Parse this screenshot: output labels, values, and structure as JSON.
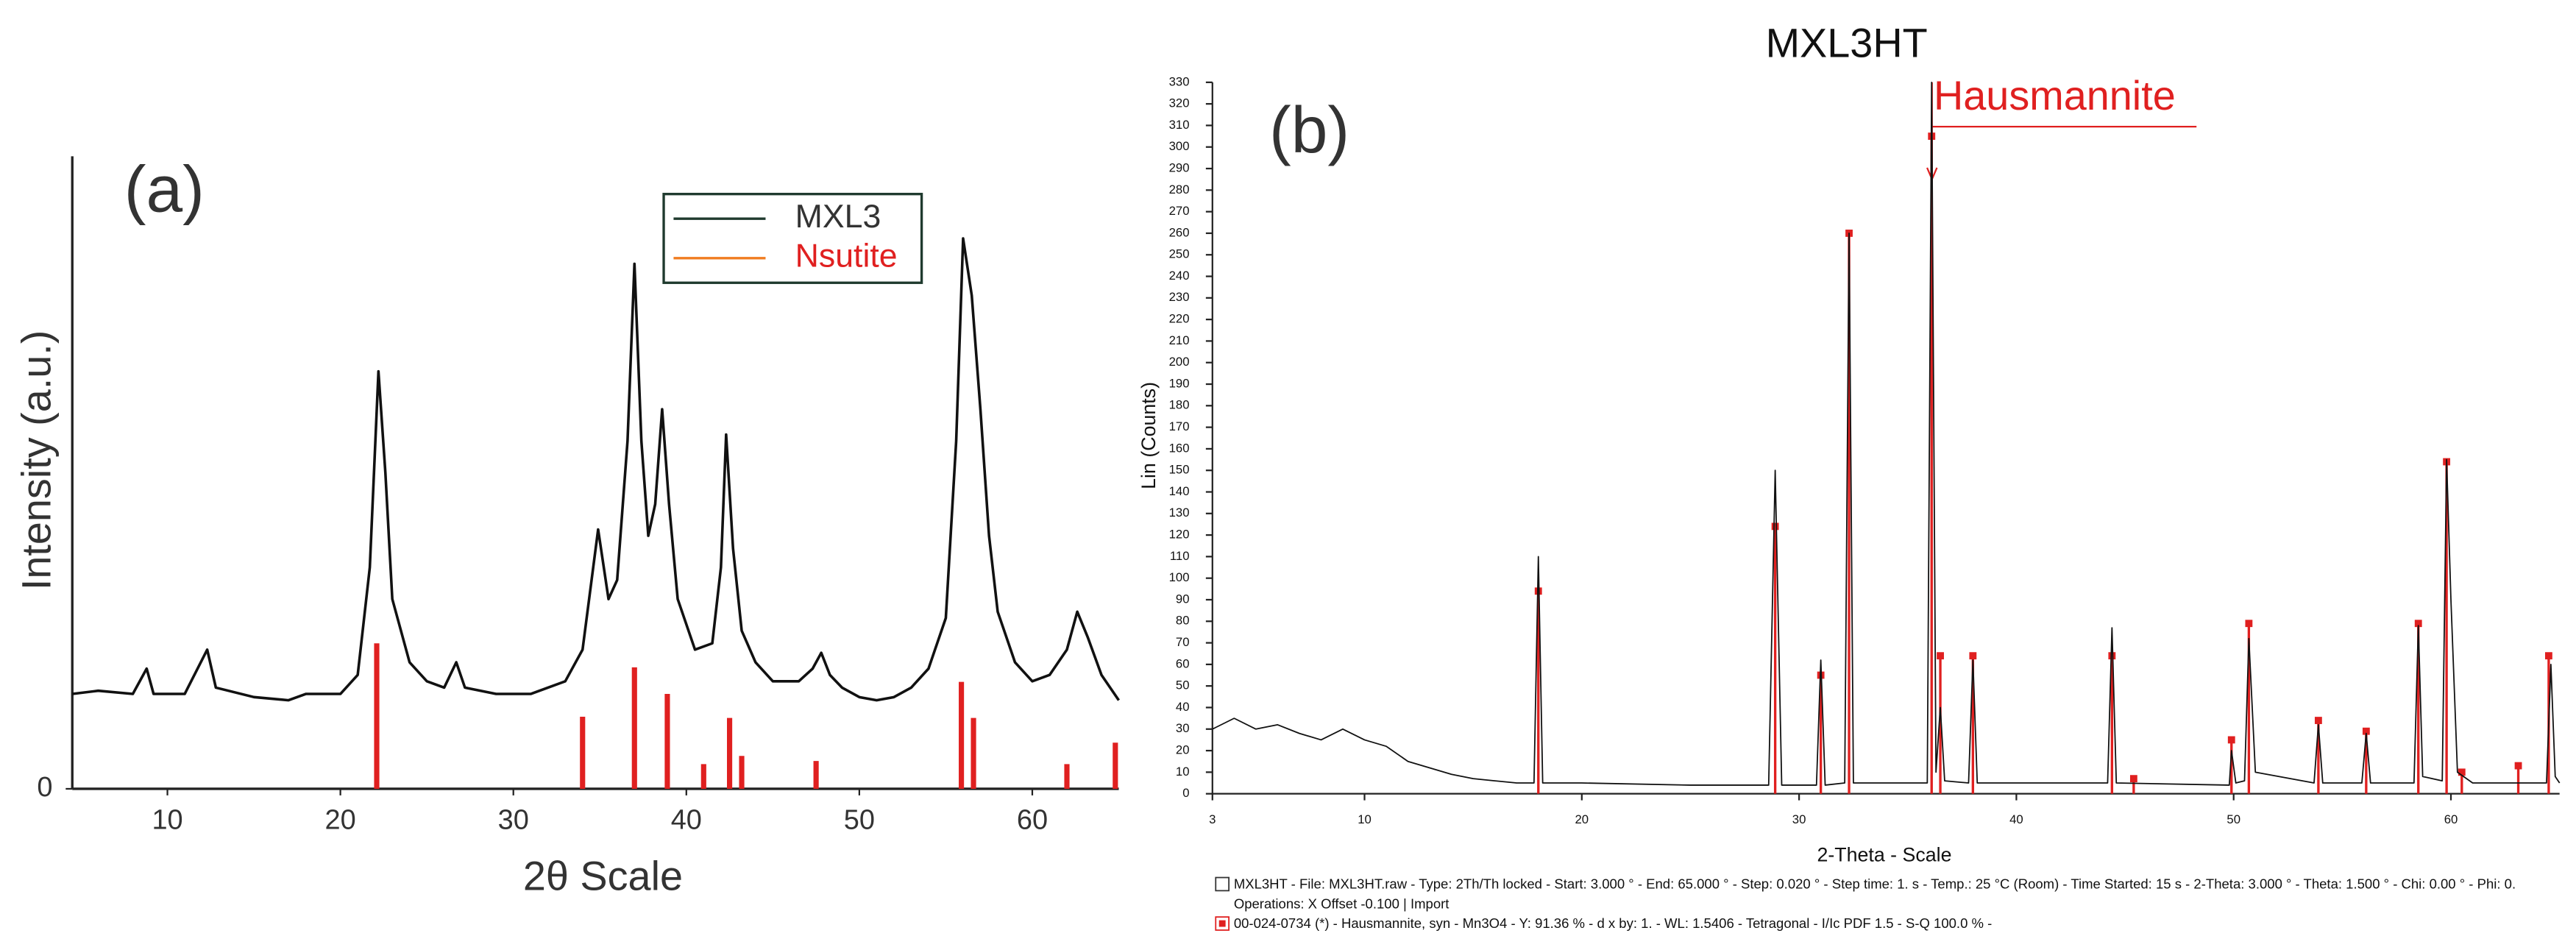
{
  "chart_data": [
    {
      "type": "line",
      "panel_label": "(a)",
      "xlabel": "2θ Scale",
      "ylabel": "Intensity (a.u.)",
      "xlim": [
        4.5,
        65
      ],
      "ylim": [
        0,
        100
      ],
      "xticks": [
        10,
        20,
        30,
        40,
        50,
        60
      ],
      "yticks": [
        0
      ],
      "grid": false,
      "series": [
        {
          "name": "MXL3",
          "kind": "line",
          "color": "#111111",
          "legend_color": "#1f3a2e",
          "x": [
            4.5,
            6,
            8,
            8.8,
            9.2,
            11,
            12.3,
            12.8,
            15,
            17,
            18,
            20,
            21,
            21.7,
            22.2,
            22.6,
            23,
            24,
            25,
            26,
            26.7,
            27.2,
            29,
            31,
            32,
            33,
            34,
            34.9,
            35.5,
            36,
            36.6,
            37,
            37.4,
            37.8,
            38.2,
            38.6,
            39,
            39.5,
            40.5,
            41.5,
            42,
            42.3,
            42.7,
            43.2,
            44,
            45,
            46.5,
            47.3,
            47.8,
            48.3,
            49,
            50,
            51,
            52,
            53,
            54,
            55,
            55.6,
            56,
            56.5,
            57,
            57.5,
            58,
            59,
            60,
            61,
            62,
            62.6,
            63.2,
            64,
            65
          ],
          "values": [
            15,
            15.5,
            15,
            19,
            15,
            15,
            22,
            16,
            14.5,
            14,
            15,
            15,
            18,
            35,
            66,
            50,
            30,
            20,
            17,
            16,
            20,
            16,
            15,
            15,
            16,
            17,
            22,
            41,
            30,
            33,
            55,
            83,
            55,
            40,
            45,
            60,
            45,
            30,
            22,
            23,
            35,
            56,
            38,
            25,
            20,
            17,
            17,
            19,
            21.5,
            18,
            16,
            14.5,
            14,
            14.5,
            16,
            19,
            27,
            55,
            87,
            78,
            60,
            40,
            28,
            20,
            17,
            18,
            22,
            28,
            24,
            18,
            14
          ]
        },
        {
          "name": "Nsutite",
          "kind": "stem",
          "color": "#e02020",
          "legend_color": "#f07c20",
          "x": [
            22.1,
            34,
            37,
            38.9,
            41,
            42.5,
            43.2,
            47.5,
            55.9,
            56.6,
            62,
            64.8
          ],
          "values": [
            23,
            11.4,
            19.2,
            15,
            3.9,
            11.2,
            5.2,
            4.4,
            16.9,
            11.2,
            3.9,
            7.3
          ]
        }
      ]
    },
    {
      "type": "line",
      "title": "MXL3HT",
      "panel_label": "(b)",
      "annotation": "Hausmannite",
      "xlabel": "2-Theta - Scale",
      "ylabel": "Lin (Counts)",
      "xlim": [
        3,
        65
      ],
      "ylim": [
        0,
        330
      ],
      "xticks": [
        3,
        10,
        20,
        30,
        40,
        50,
        60
      ],
      "yticks": [
        0,
        10,
        20,
        30,
        40,
        50,
        60,
        70,
        80,
        90,
        100,
        110,
        120,
        130,
        140,
        150,
        160,
        170,
        180,
        190,
        200,
        210,
        220,
        230,
        240,
        250,
        260,
        270,
        280,
        290,
        300,
        310,
        320,
        330
      ],
      "grid": false,
      "series": [
        {
          "kind": "line",
          "color": "#111111",
          "x": [
            3,
            4,
            5,
            6,
            7,
            8,
            9,
            10,
            11,
            12,
            13,
            14,
            15,
            16,
            17,
            17.8,
            18,
            18.2,
            20,
            25,
            28.6,
            28.9,
            29.2,
            30.8,
            31,
            31.2,
            32.1,
            32.3,
            32.5,
            35.9,
            36.1,
            36.3,
            36.5,
            36.7,
            37.8,
            38,
            38.2,
            44.2,
            44.4,
            44.6,
            49.8,
            49.9,
            50.1,
            50.5,
            50.7,
            51,
            53.7,
            53.9,
            54.1,
            55.9,
            56.1,
            56.3,
            58.3,
            58.5,
            58.7,
            59.6,
            59.8,
            60,
            60.3,
            61,
            64.4,
            64.6,
            64.8,
            65
          ],
          "values": [
            30,
            35,
            30,
            32,
            28,
            25,
            30,
            25,
            22,
            15,
            12,
            9,
            7,
            6,
            5,
            5,
            110,
            5,
            5,
            4,
            4,
            150,
            4,
            4,
            62,
            4,
            5,
            260,
            5,
            5,
            330,
            10,
            40,
            6,
            5,
            62,
            5,
            5,
            77,
            5,
            4,
            20,
            5,
            6,
            72,
            10,
            5,
            32,
            5,
            5,
            28,
            5,
            5,
            78,
            8,
            6,
            155,
            90,
            10,
            5,
            5,
            60,
            8,
            5
          ]
        },
        {
          "kind": "stem",
          "marker": "square",
          "color": "#e02020",
          "x": [
            18,
            28.9,
            31,
            32.3,
            36.1,
            36.5,
            38,
            44.4,
            45.4,
            49.9,
            50.7,
            53.9,
            56.1,
            58.5,
            59.8,
            60.5,
            63.1,
            64.5
          ],
          "values": [
            94,
            124,
            55,
            260,
            305,
            64,
            64,
            64,
            7,
            25,
            79,
            34,
            29,
            79,
            154,
            10,
            13,
            64
          ]
        }
      ],
      "footer": [
        "MXL3HT - File: MXL3HT.raw - Type: 2Th/Th locked - Start: 3.000 ° - End: 65.000 ° - Step: 0.020 ° - Step time: 1. s - Temp.: 25 °C (Room) - Time Started: 15 s - 2-Theta: 3.000 ° - Theta: 1.500 ° - Chi: 0.00 ° - Phi: 0.",
        "Operations: X Offset -0.100 | Import",
        "00-024-0734 (*) - Hausmannite, syn - Mn3O4 - Y: 91.36 % - d x by: 1. - WL: 1.5406 - Tetragonal - I/Ic PDF 1.5 - S-Q 100.0 % -"
      ]
    }
  ]
}
